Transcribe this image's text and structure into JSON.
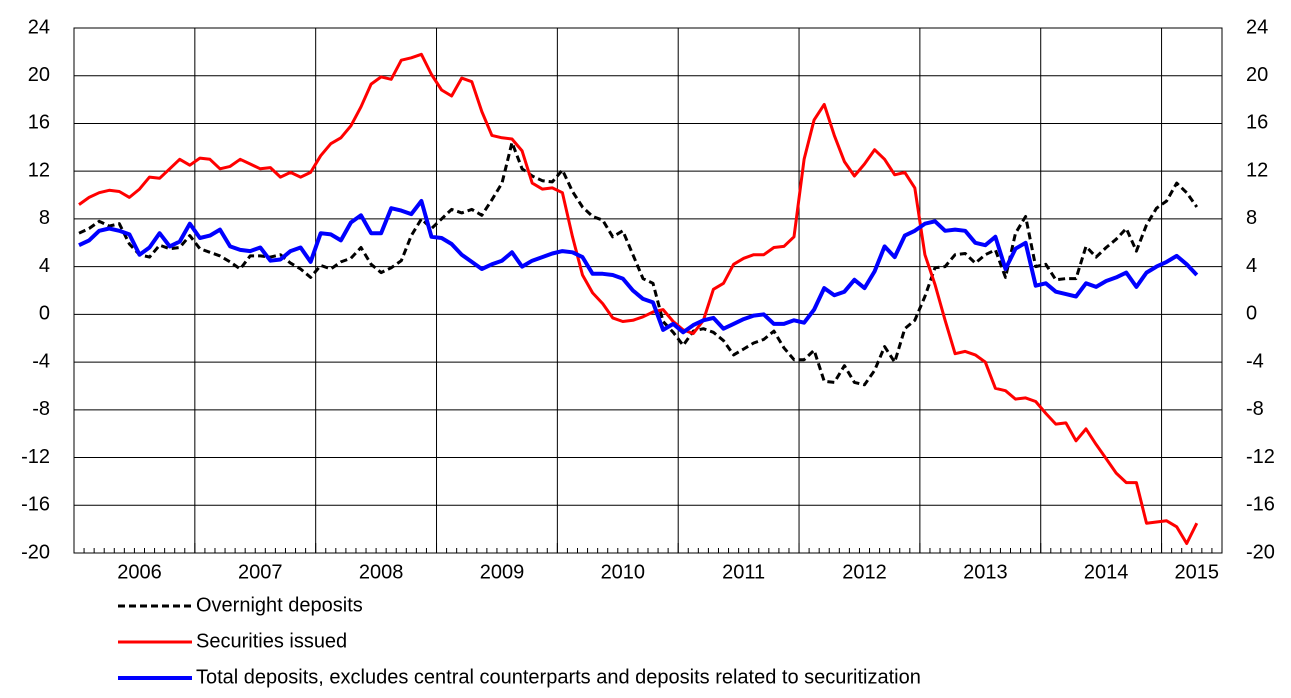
{
  "chart_data": {
    "type": "line",
    "categories": [
      null,
      null,
      null,
      null,
      null,
      null,
      "2006",
      null,
      null,
      null,
      null,
      null,
      null,
      null,
      null,
      null,
      null,
      null,
      "2007",
      null,
      null,
      null,
      null,
      null,
      null,
      null,
      null,
      null,
      null,
      null,
      "2008",
      null,
      null,
      null,
      null,
      null,
      null,
      null,
      null,
      null,
      null,
      null,
      "2009",
      null,
      null,
      null,
      null,
      null,
      null,
      null,
      null,
      null,
      null,
      null,
      "2010",
      null,
      null,
      null,
      null,
      null,
      null,
      null,
      null,
      null,
      null,
      null,
      "2011",
      null,
      null,
      null,
      null,
      null,
      null,
      null,
      null,
      null,
      null,
      null,
      "2012",
      null,
      null,
      null,
      null,
      null,
      null,
      null,
      null,
      null,
      null,
      null,
      "2013",
      null,
      null,
      null,
      null,
      null,
      null,
      null,
      null,
      null,
      null,
      null,
      "2014",
      null,
      null,
      null,
      null,
      null,
      null,
      null,
      null,
      "2015"
    ],
    "series": [
      {
        "name": "Overnight deposits",
        "color": "#000000",
        "dashed": true,
        "values": [
          6.8,
          7.2,
          7.8,
          7.4,
          7.6,
          5.9,
          5.0,
          4.8,
          5.8,
          5.5,
          5.6,
          6.6,
          5.5,
          5.2,
          4.9,
          4.4,
          3.8,
          4.9,
          4.9,
          4.8,
          5.0,
          4.3,
          3.8,
          3.1,
          4.1,
          3.8,
          4.4,
          4.7,
          5.6,
          4.2,
          3.5,
          3.9,
          4.5,
          6.6,
          8.0,
          7.2,
          8.0,
          8.8,
          8.5,
          8.8,
          8.3,
          9.6,
          11.0,
          14.4,
          12.2,
          11.6,
          11.2,
          11.1,
          12.1,
          10.3,
          9.0,
          8.2,
          7.9,
          6.5,
          7.0,
          5.0,
          3.0,
          2.6,
          -0.6,
          -1.5,
          -2.6,
          -1.4,
          -1.2,
          -1.5,
          -2.2,
          -3.4,
          -2.9,
          -2.4,
          -2.1,
          -1.4,
          -2.8,
          -3.8,
          -3.8,
          -3.0,
          -5.6,
          -5.7,
          -4.3,
          -5.7,
          -5.9,
          -4.7,
          -2.7,
          -4.0,
          -1.2,
          -0.5,
          1.5,
          3.9,
          4.0,
          5.0,
          5.1,
          4.3,
          5.0,
          5.4,
          3.1,
          6.8,
          8.2,
          4.0,
          4.2,
          2.9,
          3.0,
          3.0,
          5.7,
          4.8,
          5.6,
          6.3,
          7.2,
          5.3,
          7.5,
          8.9,
          9.5,
          11.0,
          10.2,
          9.0
        ]
      },
      {
        "name": "Securities issued",
        "color": "#ff0000",
        "values": [
          9.2,
          9.8,
          10.2,
          10.4,
          10.3,
          9.8,
          10.5,
          11.5,
          11.4,
          12.2,
          13.0,
          12.5,
          13.1,
          13.0,
          12.2,
          12.4,
          13.0,
          12.6,
          12.2,
          12.3,
          11.5,
          11.9,
          11.5,
          11.9,
          13.3,
          14.3,
          14.8,
          15.8,
          17.4,
          19.3,
          19.9,
          19.7,
          21.3,
          21.5,
          21.8,
          20.1,
          18.8,
          18.3,
          19.8,
          19.5,
          17.0,
          15.0,
          14.8,
          14.7,
          13.7,
          11.0,
          10.5,
          10.6,
          10.2,
          6.5,
          3.3,
          1.8,
          0.9,
          -0.3,
          -0.6,
          -0.5,
          -0.2,
          0.2,
          0.4,
          -0.6,
          -1.3,
          -1.6,
          -0.5,
          2.1,
          2.6,
          4.2,
          4.7,
          5.0,
          5.0,
          5.6,
          5.7,
          6.5,
          13.0,
          16.3,
          17.6,
          15.0,
          12.8,
          11.6,
          12.6,
          13.8,
          13.0,
          11.7,
          11.9,
          10.6,
          5.0,
          2.5,
          -0.5,
          -3.3,
          -3.1,
          -3.4,
          -4.0,
          -6.2,
          -6.4,
          -7.1,
          -7.0,
          -7.3,
          -8.3,
          -9.2,
          -9.1,
          -10.6,
          -9.6,
          -10.9,
          -12.1,
          -13.3,
          -14.1,
          -14.1,
          -17.5,
          -17.4,
          -17.3,
          -17.8,
          -19.2,
          -17.5
        ]
      },
      {
        "name": "Total deposits, excludes central counterparts and deposits related to securitization",
        "color": "#0000ff",
        "values": [
          5.8,
          6.2,
          7.0,
          7.2,
          7.0,
          6.7,
          5.0,
          5.6,
          6.8,
          5.7,
          6.1,
          7.6,
          6.4,
          6.6,
          7.1,
          5.7,
          5.4,
          5.3,
          5.6,
          4.5,
          4.6,
          5.3,
          5.6,
          4.4,
          6.8,
          6.7,
          6.2,
          7.7,
          8.3,
          6.8,
          6.8,
          8.9,
          8.7,
          8.4,
          9.5,
          6.5,
          6.4,
          5.9,
          5.0,
          4.4,
          3.8,
          4.2,
          4.5,
          5.2,
          4.0,
          4.5,
          4.8,
          5.1,
          5.3,
          5.2,
          4.8,
          3.4,
          3.4,
          3.3,
          3.0,
          2.0,
          1.3,
          1.0,
          -1.3,
          -0.8,
          -1.5,
          -0.9,
          -0.5,
          -0.3,
          -1.2,
          -0.8,
          -0.4,
          -0.1,
          0.0,
          -0.8,
          -0.8,
          -0.5,
          -0.7,
          0.4,
          2.2,
          1.6,
          1.9,
          2.9,
          2.2,
          3.6,
          5.7,
          4.8,
          6.6,
          7.0,
          7.6,
          7.8,
          7.0,
          7.1,
          7.0,
          6.0,
          5.8,
          6.5,
          3.8,
          5.5,
          6.0,
          2.4,
          2.6,
          1.9,
          1.7,
          1.5,
          2.6,
          2.3,
          2.8,
          3.1,
          3.5,
          2.3,
          3.5,
          4.0,
          4.4,
          4.9,
          4.2,
          3.3
        ]
      }
    ],
    "ylim": [
      -20,
      24
    ],
    "yticks": [
      -20,
      -16,
      -12,
      -8,
      -4,
      0,
      4,
      8,
      12,
      16,
      20,
      24
    ],
    "grid": true
  }
}
